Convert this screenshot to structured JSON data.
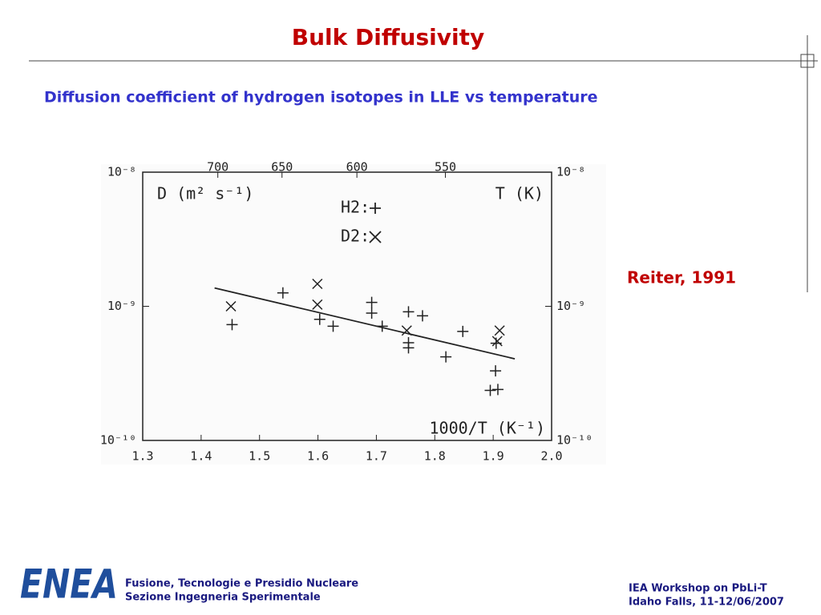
{
  "slide": {
    "title": "Bulk Diffusivity",
    "subtitle": "Diffusion coefficient of hydrogen isotopes in LLE vs  temperature",
    "reference": "Reiter, 1991",
    "logo": "ENEA",
    "footer_left": [
      "Fusione, Tecnologie e Presidio Nucleare",
      "Sezione Ingegneria Sperimentale"
    ],
    "footer_right": [
      "IEA Workshop on PbLi-T",
      "Idaho Falls, 11-12/06/2007"
    ]
  },
  "chart_data": {
    "type": "scatter",
    "y_label": "D (m² s⁻¹)",
    "x_label": "1000/T (K⁻¹)",
    "x2_label": "T (K)",
    "xlim": [
      1.3,
      2.0
    ],
    "xticks": [
      1.3,
      1.4,
      1.5,
      1.6,
      1.7,
      1.8,
      1.9,
      {
        "value": 2.0,
        "label": "2.0"
      }
    ],
    "x2lim": [
      769.23,
      500
    ],
    "x2scale": "reciprocal",
    "x2ticks": [
      700,
      650,
      600,
      550
    ],
    "ylim": [
      1e-10,
      1e-08
    ],
    "yscale": "log",
    "yticks": [
      {
        "value": 1e-10,
        "label": "10⁻¹⁰"
      },
      {
        "value": 1e-09,
        "label": "10⁻⁹"
      },
      {
        "value": 1e-08,
        "label": "10⁻⁸"
      }
    ],
    "y2lim": [
      1e-10,
      1e-08
    ],
    "y2ticks": [
      {
        "value": 1e-10,
        "label": "10⁻¹⁰"
      },
      {
        "value": 1e-09,
        "label": "10⁻⁹"
      },
      {
        "value": 1e-08,
        "label": "10⁻⁸"
      }
    ],
    "series": [
      {
        "name": "H2:",
        "marker": "plus",
        "color": "#222222",
        "x": [
          1.453,
          1.54,
          1.603,
          1.626,
          1.692,
          1.692,
          1.71,
          1.755,
          1.779,
          1.755,
          1.755,
          1.819,
          1.848,
          1.905,
          1.904,
          1.895,
          1.908
        ],
        "values": [
          7.3e-10,
          1.26e-09,
          8e-10,
          7.1e-10,
          1.07e-09,
          8.9e-10,
          7.1e-10,
          9.1e-10,
          8.5e-10,
          5.35e-10,
          4.9e-10,
          4.2e-10,
          6.5e-10,
          5.3e-10,
          3.3e-10,
          2.36e-10,
          2.4e-10
        ]
      },
      {
        "name": "D2:",
        "marker": "cross",
        "color": "#222222",
        "x": [
          1.451,
          1.599,
          1.599,
          1.752,
          1.911,
          1.907
        ],
        "values": [
          1e-09,
          1.47e-09,
          1.03e-09,
          6.6e-10,
          6.6e-10,
          5.5e-10
        ]
      }
    ],
    "fit": {
      "color": "#222222",
      "x": [
        1.423,
        1.937
      ],
      "values": [
        1.37e-09,
        4.06e-10
      ]
    }
  }
}
